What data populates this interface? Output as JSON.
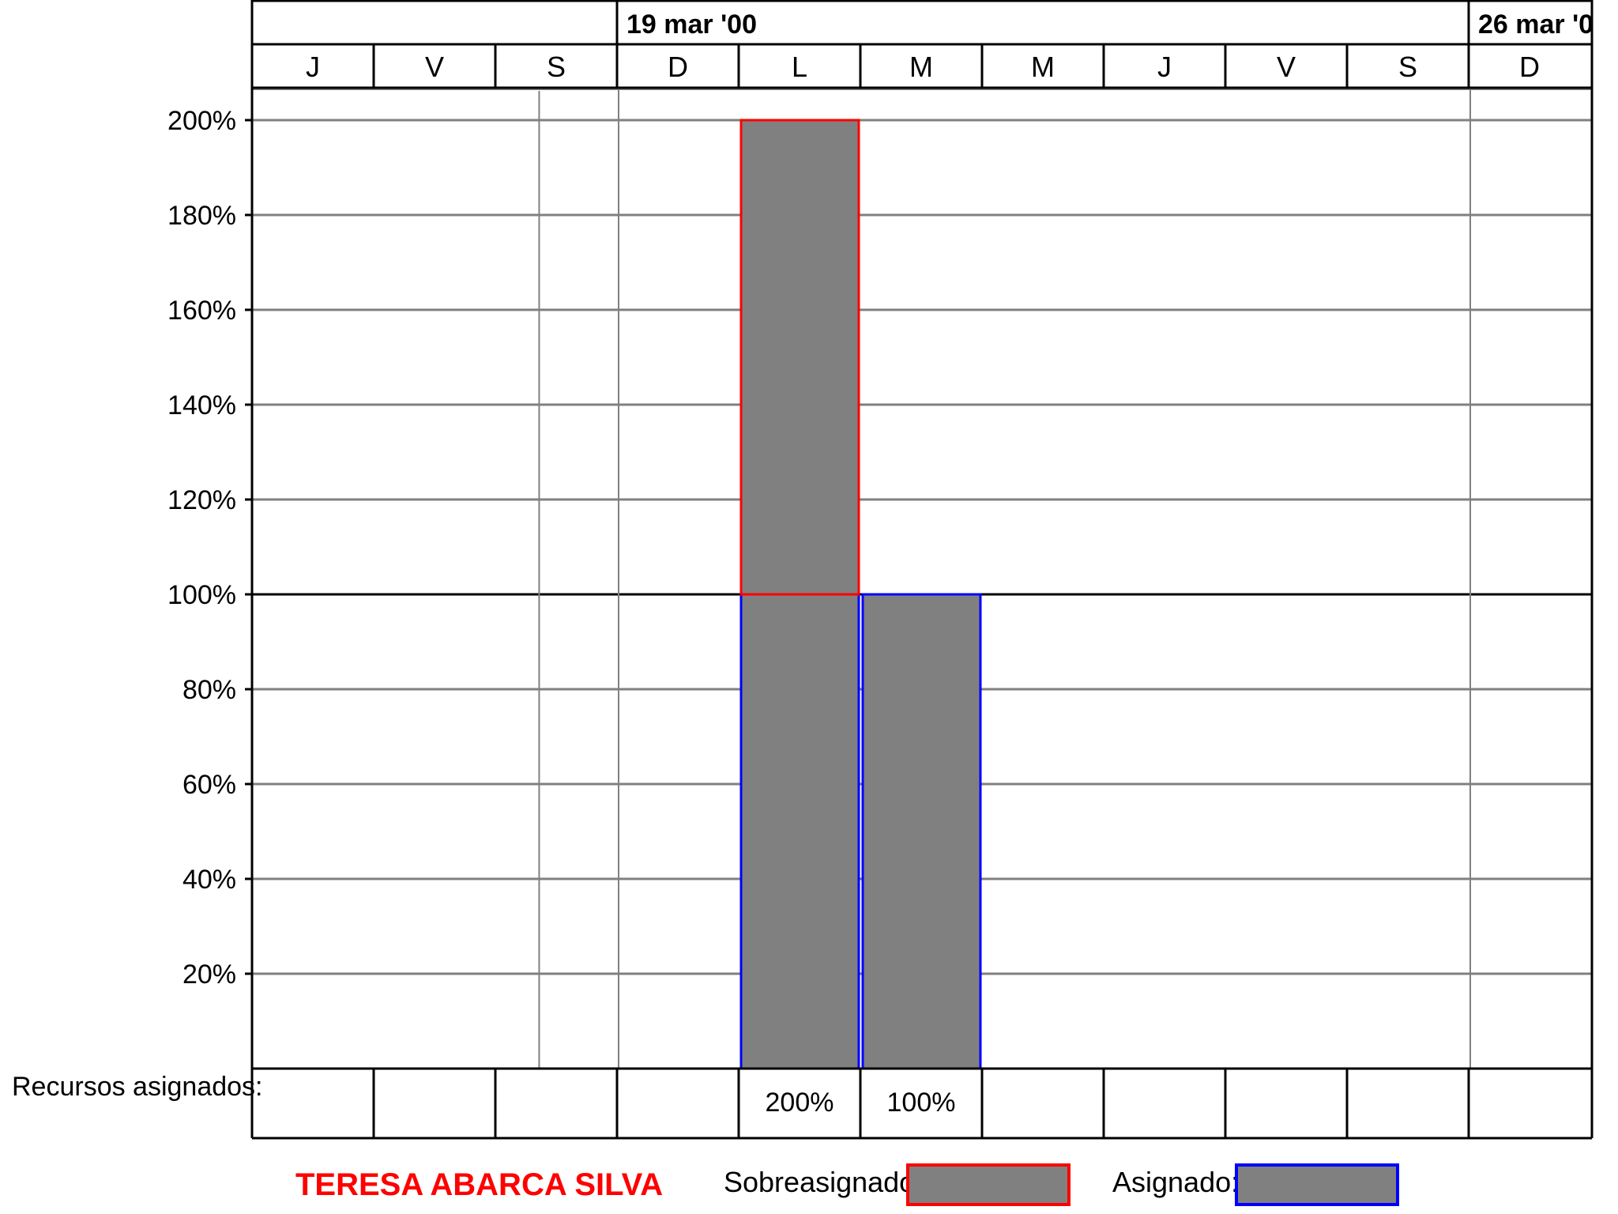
{
  "chart_data": {
    "type": "bar",
    "header": {
      "weeks": [
        {
          "label": "",
          "start_index": 0,
          "span": 3
        },
        {
          "label": "19 mar '00",
          "start_index": 3,
          "span": 7
        },
        {
          "label": "26 mar '0",
          "start_index": 10,
          "span": 1
        }
      ],
      "days": [
        "J",
        "V",
        "S",
        "D",
        "L",
        "M",
        "M",
        "J",
        "V",
        "S",
        "D"
      ]
    },
    "y_axis": {
      "ticks": [
        "20%",
        "40%",
        "60%",
        "80%",
        "100%",
        "120%",
        "140%",
        "160%",
        "180%",
        "200%"
      ],
      "tick_values": [
        20,
        40,
        60,
        80,
        100,
        120,
        140,
        160,
        180,
        200
      ],
      "ylim": [
        0,
        200
      ],
      "max_line": 100
    },
    "series": [
      {
        "name": "Asignado",
        "values": [
          0,
          0,
          0,
          0,
          100,
          100,
          0,
          0,
          0,
          0,
          0
        ],
        "color": "#0000ff"
      },
      {
        "name": "Sobreasignado",
        "values": [
          0,
          0,
          0,
          0,
          100,
          0,
          0,
          0,
          0,
          0,
          0
        ],
        "color": "#ff0000"
      }
    ],
    "bar_fill": "#808080",
    "assigned_row": {
      "label": "Recursos asignados:",
      "values": [
        "",
        "",
        "",
        "",
        "200%",
        "100%",
        "",
        "",
        "",
        "",
        ""
      ]
    },
    "resource_name": "TERESA ABARCA SILVA",
    "resource_color": "#ff0000",
    "legend": [
      {
        "label": "Sobreasignado:",
        "border": "#ff0000",
        "fill": "#808080"
      },
      {
        "label": "Asignado:",
        "border": "#0000ff",
        "fill": "#808080"
      }
    ],
    "grid": true
  }
}
